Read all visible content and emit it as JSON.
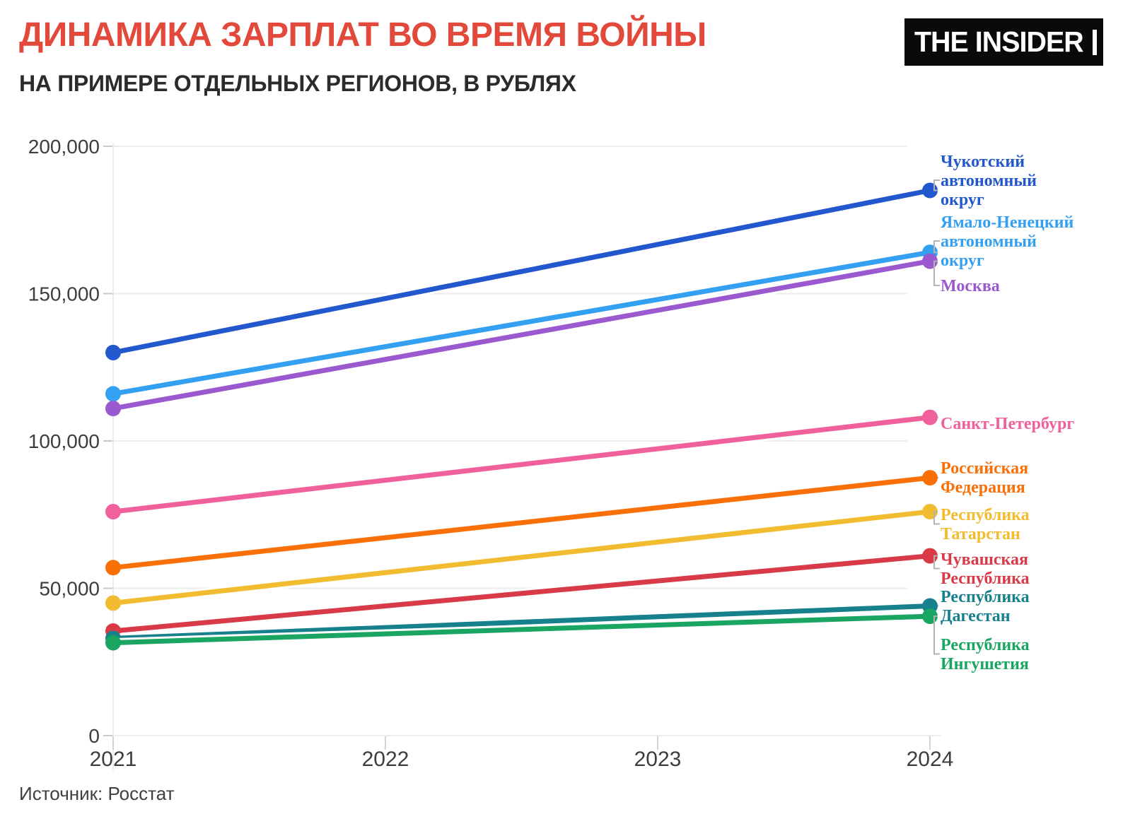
{
  "header": {
    "title": "ДИНАМИКА ЗАРПЛАТ ВО ВРЕМЯ ВОЙНЫ",
    "subtitle": "НА ПРИМЕРЕ ОТДЕЛЬНЫХ РЕГИОНОВ, В РУБЛЯХ",
    "title_color": "#e2493b",
    "logo_text": "THE INSIDER",
    "logo_bg": "#0a0a0a",
    "logo_fg": "#ffffff"
  },
  "source": "Источник: Росстат",
  "chart_data": {
    "type": "line",
    "title": "ДИНАМИКА ЗАРПЛАТ ВО ВРЕМЯ ВОЙНЫ",
    "subtitle": "НА ПРИМЕРЕ ОТДЕЛЬНЫХ РЕГИОНОВ, В РУБЛЯХ",
    "unit": "рубли",
    "x": [
      2021,
      2024
    ],
    "x_ticks": [
      2021,
      2022,
      2023,
      2024
    ],
    "ylim": [
      0,
      200000
    ],
    "y_ticks": [
      0,
      50000,
      100000,
      150000,
      200000
    ],
    "y_tick_labels": [
      "0",
      "50,000",
      "100,000",
      "150,000",
      "200,000"
    ],
    "grid": true,
    "legend_position": "right-edge-labels",
    "grid_color": "#ececee",
    "tick_color": "#c9c9c9",
    "axis_text_color": "#3d3d3d",
    "connector_color": "#b3b3b3",
    "series": [
      {
        "name": "Чукотский автономный округ",
        "label_lines": [
          "Чукотский",
          "автономный",
          "округ"
        ],
        "color": "#2257cd",
        "values": [
          130000,
          185000
        ],
        "label_first_center_y": 228
      },
      {
        "name": "Ямало-Ненецкий автономный округ",
        "label_lines": [
          "Ямало-Ненецкий",
          "автономный",
          "округ"
        ],
        "color": "#34a0f2",
        "values": [
          116000,
          164000
        ],
        "label_first_center_y": 314
      },
      {
        "name": "Москва",
        "label_lines": [
          "Москва"
        ],
        "color": "#9b59d0",
        "values": [
          111000,
          161000
        ],
        "label_first_center_y": 404
      },
      {
        "name": "Санкт-Петербург",
        "label_lines": [
          "Санкт-Петербург"
        ],
        "color": "#f0609a",
        "values": [
          76000,
          108000
        ],
        "label_first_center_y": 599
      },
      {
        "name": "Российская Федерация",
        "label_lines": [
          "Российская",
          "Федерация"
        ],
        "color": "#f97009",
        "values": [
          57000,
          87500
        ],
        "label_first_center_y": 662
      },
      {
        "name": "Республика Татарстан",
        "label_lines": [
          "Республика",
          "Татарстан"
        ],
        "color": "#f2bc30",
        "values": [
          45000,
          76000
        ],
        "label_first_center_y": 728
      },
      {
        "name": "Чувашская Республика",
        "label_lines": [
          "Чувашская",
          "Республика"
        ],
        "color": "#d93a47",
        "values": [
          35500,
          61000
        ],
        "label_first_center_y": 791
      },
      {
        "name": "Республика Дагестан",
        "label_lines": [
          "Республика",
          "Дагестан"
        ],
        "color": "#17808d",
        "values": [
          33000,
          44000
        ],
        "label_first_center_y": 844
      },
      {
        "name": "Республика Ингушетия",
        "label_lines": [
          "Республика",
          "Ингушетия"
        ],
        "color": "#1aa562",
        "values": [
          31500,
          40500
        ],
        "label_first_center_y": 912
      }
    ]
  }
}
